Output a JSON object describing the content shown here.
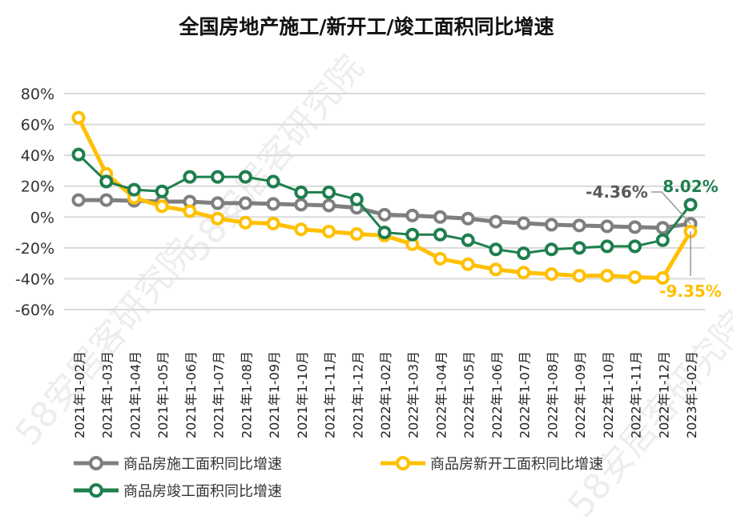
{
  "chart_data": {
    "type": "line",
    "title": "全国房地产施工/新开工/竣工面积同比增速",
    "categories": [
      "2021年1-02月",
      "2021年1-03月",
      "2021年1-04月",
      "2021年1-05月",
      "2021年1-06月",
      "2021年1-07月",
      "2021年1-08月",
      "2021年1-09月",
      "2021年1-10月",
      "2021年1-11月",
      "2021年1-12月",
      "2022年1-02月",
      "2022年1-03月",
      "2022年1-04月",
      "2022年1-05月",
      "2022年1-06月",
      "2022年1-07月",
      "2022年1-08月",
      "2022年1-09月",
      "2022年1-10月",
      "2022年1-11月",
      "2022年1-12月",
      "2023年1-02月"
    ],
    "ylim": [
      -60,
      80
    ],
    "yticks": [
      "80%",
      "60%",
      "40%",
      "20%",
      "0%",
      "-20%",
      "-40%",
      "-60%"
    ],
    "ytick_values": [
      80,
      60,
      40,
      20,
      0,
      -20,
      -40,
      -60
    ],
    "grid": true,
    "legend_position": "bottom",
    "series": [
      {
        "name": "商品房施工面积同比增速",
        "color": "#7f7f7f",
        "values": [
          11,
          11,
          10.5,
          10,
          10,
          9,
          9,
          8.5,
          8,
          7.5,
          6,
          1.5,
          1,
          0,
          -1,
          -3,
          -4,
          -5,
          -5.5,
          -6,
          -6.5,
          -7,
          -4.36
        ],
        "end_label": "-4.36%"
      },
      {
        "name": "商品房新开工面积同比增速",
        "color": "#ffc000",
        "values": [
          64.4,
          28,
          12.5,
          7,
          3.8,
          -1,
          -3.6,
          -4.2,
          -8,
          -9.4,
          -11,
          -12,
          -17.6,
          -27,
          -30.6,
          -34,
          -36,
          -37,
          -38,
          -38,
          -39,
          -39.5,
          -9.35
        ],
        "end_label": "-9.35%"
      },
      {
        "name": "商品房竣工面积同比增速",
        "color": "#1e7f4e",
        "values": [
          40.5,
          23,
          17.7,
          16.6,
          26,
          26,
          26,
          23,
          16,
          16,
          11.4,
          -10,
          -11.4,
          -11.4,
          -15,
          -21,
          -23.5,
          -21,
          -20,
          -19,
          -19,
          -15,
          8.02
        ],
        "end_label": "8.02%"
      }
    ]
  },
  "watermark": "58安居客研究院"
}
